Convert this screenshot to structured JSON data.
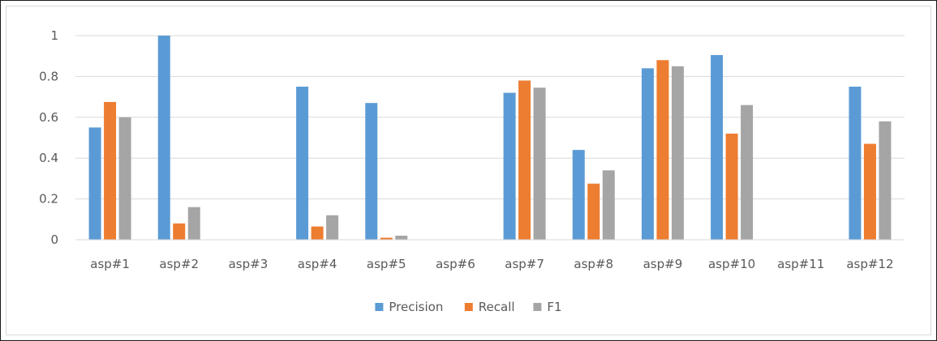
{
  "chart_data": {
    "type": "bar",
    "categories": [
      "asp#1",
      "asp#2",
      "asp#3",
      "asp#4",
      "asp#5",
      "asp#6",
      "asp#7",
      "asp#8",
      "asp#9",
      "asp#10",
      "asp#11",
      "asp#12"
    ],
    "series": [
      {
        "name": "Precision",
        "color": "#5b9bd5",
        "values": [
          0.55,
          1.0,
          0,
          0.75,
          0.67,
          0,
          0.72,
          0.44,
          0.84,
          0.905,
          0,
          0.75
        ]
      },
      {
        "name": "Recall",
        "color": "#ed7d31",
        "values": [
          0.675,
          0.08,
          0,
          0.065,
          0.01,
          0,
          0.78,
          0.275,
          0.88,
          0.52,
          0,
          0.47
        ]
      },
      {
        "name": "F1",
        "color": "#a5a5a5",
        "values": [
          0.6,
          0.16,
          0,
          0.12,
          0.02,
          0,
          0.745,
          0.34,
          0.85,
          0.66,
          0,
          0.58
        ]
      }
    ],
    "ylim": [
      0,
      1
    ],
    "yticks": [
      "0",
      "0.2",
      "0.4",
      "0.6",
      "0.8",
      "1"
    ],
    "ytick_values": [
      0,
      0.2,
      0.4,
      0.6,
      0.8,
      1
    ],
    "grid": true,
    "legend": "bottom-center",
    "title": "",
    "xlabel": "",
    "ylabel": ""
  }
}
